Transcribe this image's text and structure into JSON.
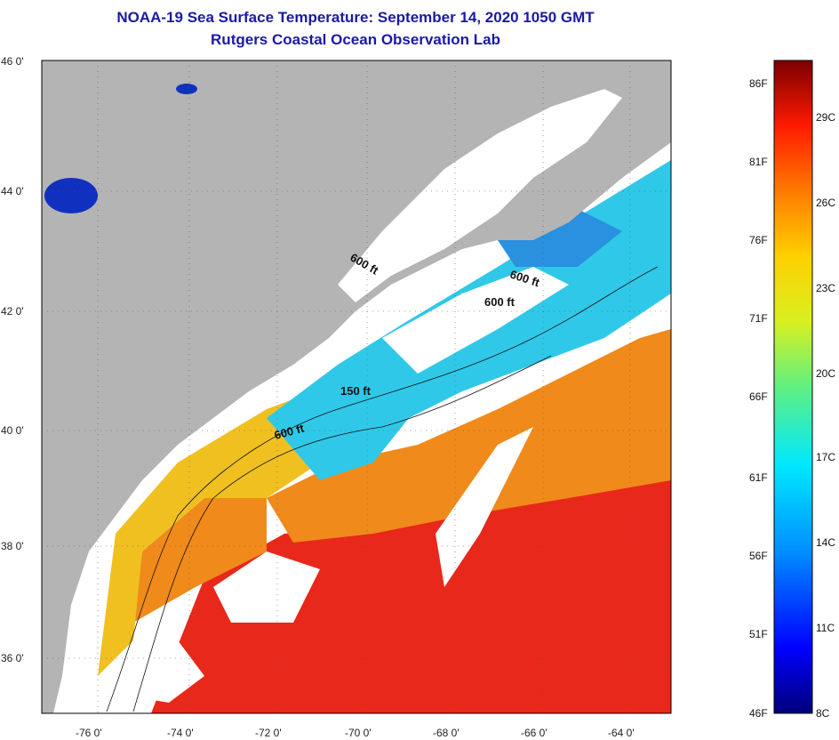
{
  "title": {
    "line1": "NOAA-19 Sea Surface Temperature:  September 14, 2020 1050 GMT",
    "line2": "Rutgers Coastal Ocean Observation Lab"
  },
  "map": {
    "lat_labels": [
      "46 0'",
      "44 0'",
      "42 0'",
      "40 0'",
      "38 0'",
      "36 0'"
    ],
    "lon_labels": [
      "-76 0'",
      "-74 0'",
      "-72 0'",
      "-70 0'",
      "-68 0'",
      "-66 0'",
      "-64 0'"
    ],
    "depth_labels": [
      "600 ft",
      "600 ft",
      "600 ft",
      "150 ft",
      "600 ft"
    ],
    "colors": {
      "land": "#b4b4b4",
      "cloud": "#ffffff",
      "warm": "#e8281a",
      "orange": "#f08a1a",
      "cool": "#30c8e8"
    }
  },
  "colorbar": {
    "f_labels": [
      "86F",
      "81F",
      "76F",
      "71F",
      "66F",
      "61F",
      "56F",
      "51F",
      "46F"
    ],
    "c_labels": [
      "29C",
      "26C",
      "23C",
      "20C",
      "17C",
      "14C",
      "11C",
      "8C"
    ]
  }
}
